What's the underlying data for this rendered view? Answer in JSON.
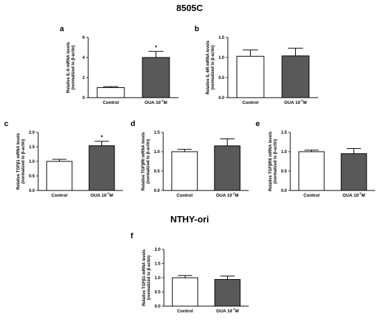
{
  "titles": [
    "8505C",
    "NTHY-ori"
  ],
  "chart_data": [
    {
      "panel": "a",
      "type": "bar",
      "categories": [
        "Control",
        "OUA 10^-7M"
      ],
      "values": [
        1.0,
        4.0
      ],
      "errors": [
        0.1,
        0.6
      ],
      "significance": [
        "",
        "*"
      ],
      "ylabel": [
        "Relative IL-6 mRNA levels",
        "(normalized to β-actin)"
      ],
      "ylim": [
        0,
        6
      ],
      "yticks": [
        0,
        2,
        4,
        6
      ],
      "tick_decimals": 0
    },
    {
      "panel": "b",
      "type": "bar",
      "categories": [
        "Control",
        "OUA 10^-7M"
      ],
      "values": [
        1.03,
        1.04
      ],
      "errors": [
        0.16,
        0.19
      ],
      "significance": [
        "",
        ""
      ],
      "ylabel": [
        "Relative IL-6R mRNA levels",
        "(normalized to β-actin)"
      ],
      "ylim": [
        0,
        1.5
      ],
      "yticks": [
        0.0,
        0.5,
        1.0,
        1.5
      ],
      "tick_decimals": 1
    },
    {
      "panel": "c",
      "type": "bar",
      "categories": [
        "Control",
        "OUA 10^-7M"
      ],
      "values": [
        1.0,
        1.54
      ],
      "errors": [
        0.07,
        0.15
      ],
      "significance": [
        "",
        "*"
      ],
      "ylabel": [
        "Relative TGFβ1 mRNA levels",
        "(normalized to β-actin)"
      ],
      "ylim": [
        0,
        2.0
      ],
      "yticks": [
        0.0,
        0.5,
        1.0,
        1.5,
        2.0
      ],
      "tick_decimals": 1
    },
    {
      "panel": "d",
      "type": "bar",
      "categories": [
        "Control",
        "OUA 10^-7M"
      ],
      "values": [
        1.0,
        1.15
      ],
      "errors": [
        0.06,
        0.18
      ],
      "significance": [
        "",
        ""
      ],
      "ylabel": [
        "Relative TGFβRI mRNA levels",
        "(normalized to β-actin)"
      ],
      "ylim": [
        0,
        1.5
      ],
      "yticks": [
        0.0,
        0.5,
        1.0,
        1.5
      ],
      "tick_decimals": 1
    },
    {
      "panel": "e",
      "type": "bar",
      "categories": [
        "Control",
        "OUA 10^-7M"
      ],
      "values": [
        1.0,
        0.95
      ],
      "errors": [
        0.04,
        0.13
      ],
      "significance": [
        "",
        ""
      ],
      "ylabel": [
        "Relative TGFβRII mRNA levels",
        "(normalized to β-actin)"
      ],
      "ylim": [
        0,
        1.5
      ],
      "yticks": [
        0.0,
        0.5,
        1.0,
        1.5
      ],
      "tick_decimals": 1
    },
    {
      "panel": "f",
      "type": "bar",
      "categories": [
        "Control",
        "OUA 10^-7M"
      ],
      "values": [
        1.0,
        0.94
      ],
      "errors": [
        0.08,
        0.12
      ],
      "significance": [
        "",
        ""
      ],
      "ylabel": [
        "Relative TGFβ1 mRNA levels",
        "(normalized to β-actin)"
      ],
      "ylim": [
        0,
        2.0
      ],
      "yticks": [
        0.0,
        0.5,
        1.0,
        1.5,
        2.0
      ],
      "tick_decimals": 1
    }
  ],
  "colors": {
    "control_fill": "#ffffff",
    "treatment_fill": "#595959",
    "stroke": "#000000"
  }
}
